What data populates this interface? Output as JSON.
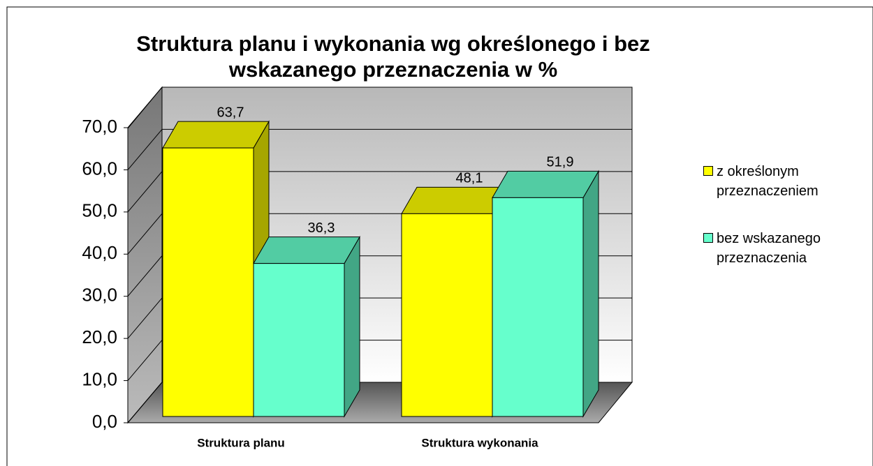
{
  "chart_data": {
    "type": "bar",
    "title": "Struktura planu i wykonania wg określonego i bez wskazanego przeznaczenia w %",
    "categories": [
      "Struktura planu",
      "Struktura wykonania"
    ],
    "series": [
      {
        "name": "z określonym przeznaczeniem",
        "color": "#ffff00",
        "values": [
          63.7,
          48.1
        ],
        "value_labels": [
          "63,7",
          "48,1"
        ]
      },
      {
        "name": "bez wskazanego przeznaczenia",
        "color": "#66ffcc",
        "values": [
          36.3,
          51.9
        ],
        "value_labels": [
          "36,3",
          "51,9"
        ]
      }
    ],
    "ylim": [
      0,
      70
    ],
    "yticks": [
      {
        "value": 0,
        "label": "0,0"
      },
      {
        "value": 10,
        "label": "10,0"
      },
      {
        "value": 20,
        "label": "20,0"
      },
      {
        "value": 30,
        "label": "30,0"
      },
      {
        "value": 40,
        "label": "40,0"
      },
      {
        "value": 50,
        "label": "50,0"
      },
      {
        "value": 60,
        "label": "60,0"
      },
      {
        "value": 70,
        "label": "70,0"
      }
    ],
    "grid": true,
    "legend": "right"
  }
}
